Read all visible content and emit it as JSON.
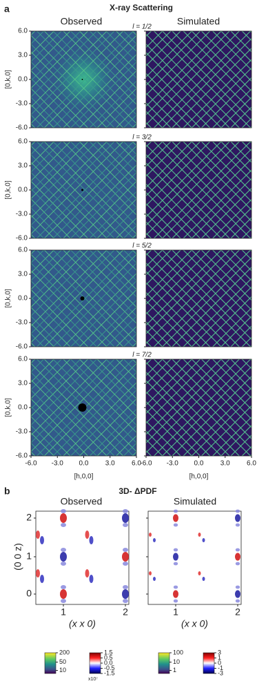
{
  "panel_a": {
    "label": "a",
    "title": "X-ray Scattering",
    "columns": [
      "Observed",
      "Simulated"
    ],
    "rows": [
      "l = 1/2",
      "l = 3/2",
      "l = 5/2",
      "l = 7/2"
    ],
    "y_axis_label": "[0,k,0]",
    "x_axis_label": "[h,0,0]",
    "y_ticks": [
      "6.0",
      "3.0",
      "0.0",
      "-3.0",
      "-6.0"
    ],
    "x_ticks": [
      "-6.0",
      "-3.0",
      "0.0",
      "3.0",
      "6.0"
    ]
  },
  "panel_b": {
    "label": "b",
    "title": "3D- ΔPDF",
    "columns": [
      "Observed",
      "Simulated"
    ],
    "y_axis_label": "(0 0 z)",
    "x_axis_label": "(x x 0)",
    "y_ticks": [
      "2",
      "1",
      "0"
    ],
    "x_ticks": [
      "1",
      "2"
    ],
    "colorbars": [
      {
        "ticks": [
          "200",
          "50",
          "10"
        ]
      },
      {
        "ticks": [
          "1.5",
          "0.5",
          "0.0",
          "-0.5",
          "-1.5"
        ],
        "scale": "x10⁷"
      },
      {
        "ticks": [
          "100",
          "10",
          "1"
        ]
      },
      {
        "ticks": [
          "3",
          "1",
          "0",
          "-1",
          "-3"
        ]
      }
    ]
  }
}
